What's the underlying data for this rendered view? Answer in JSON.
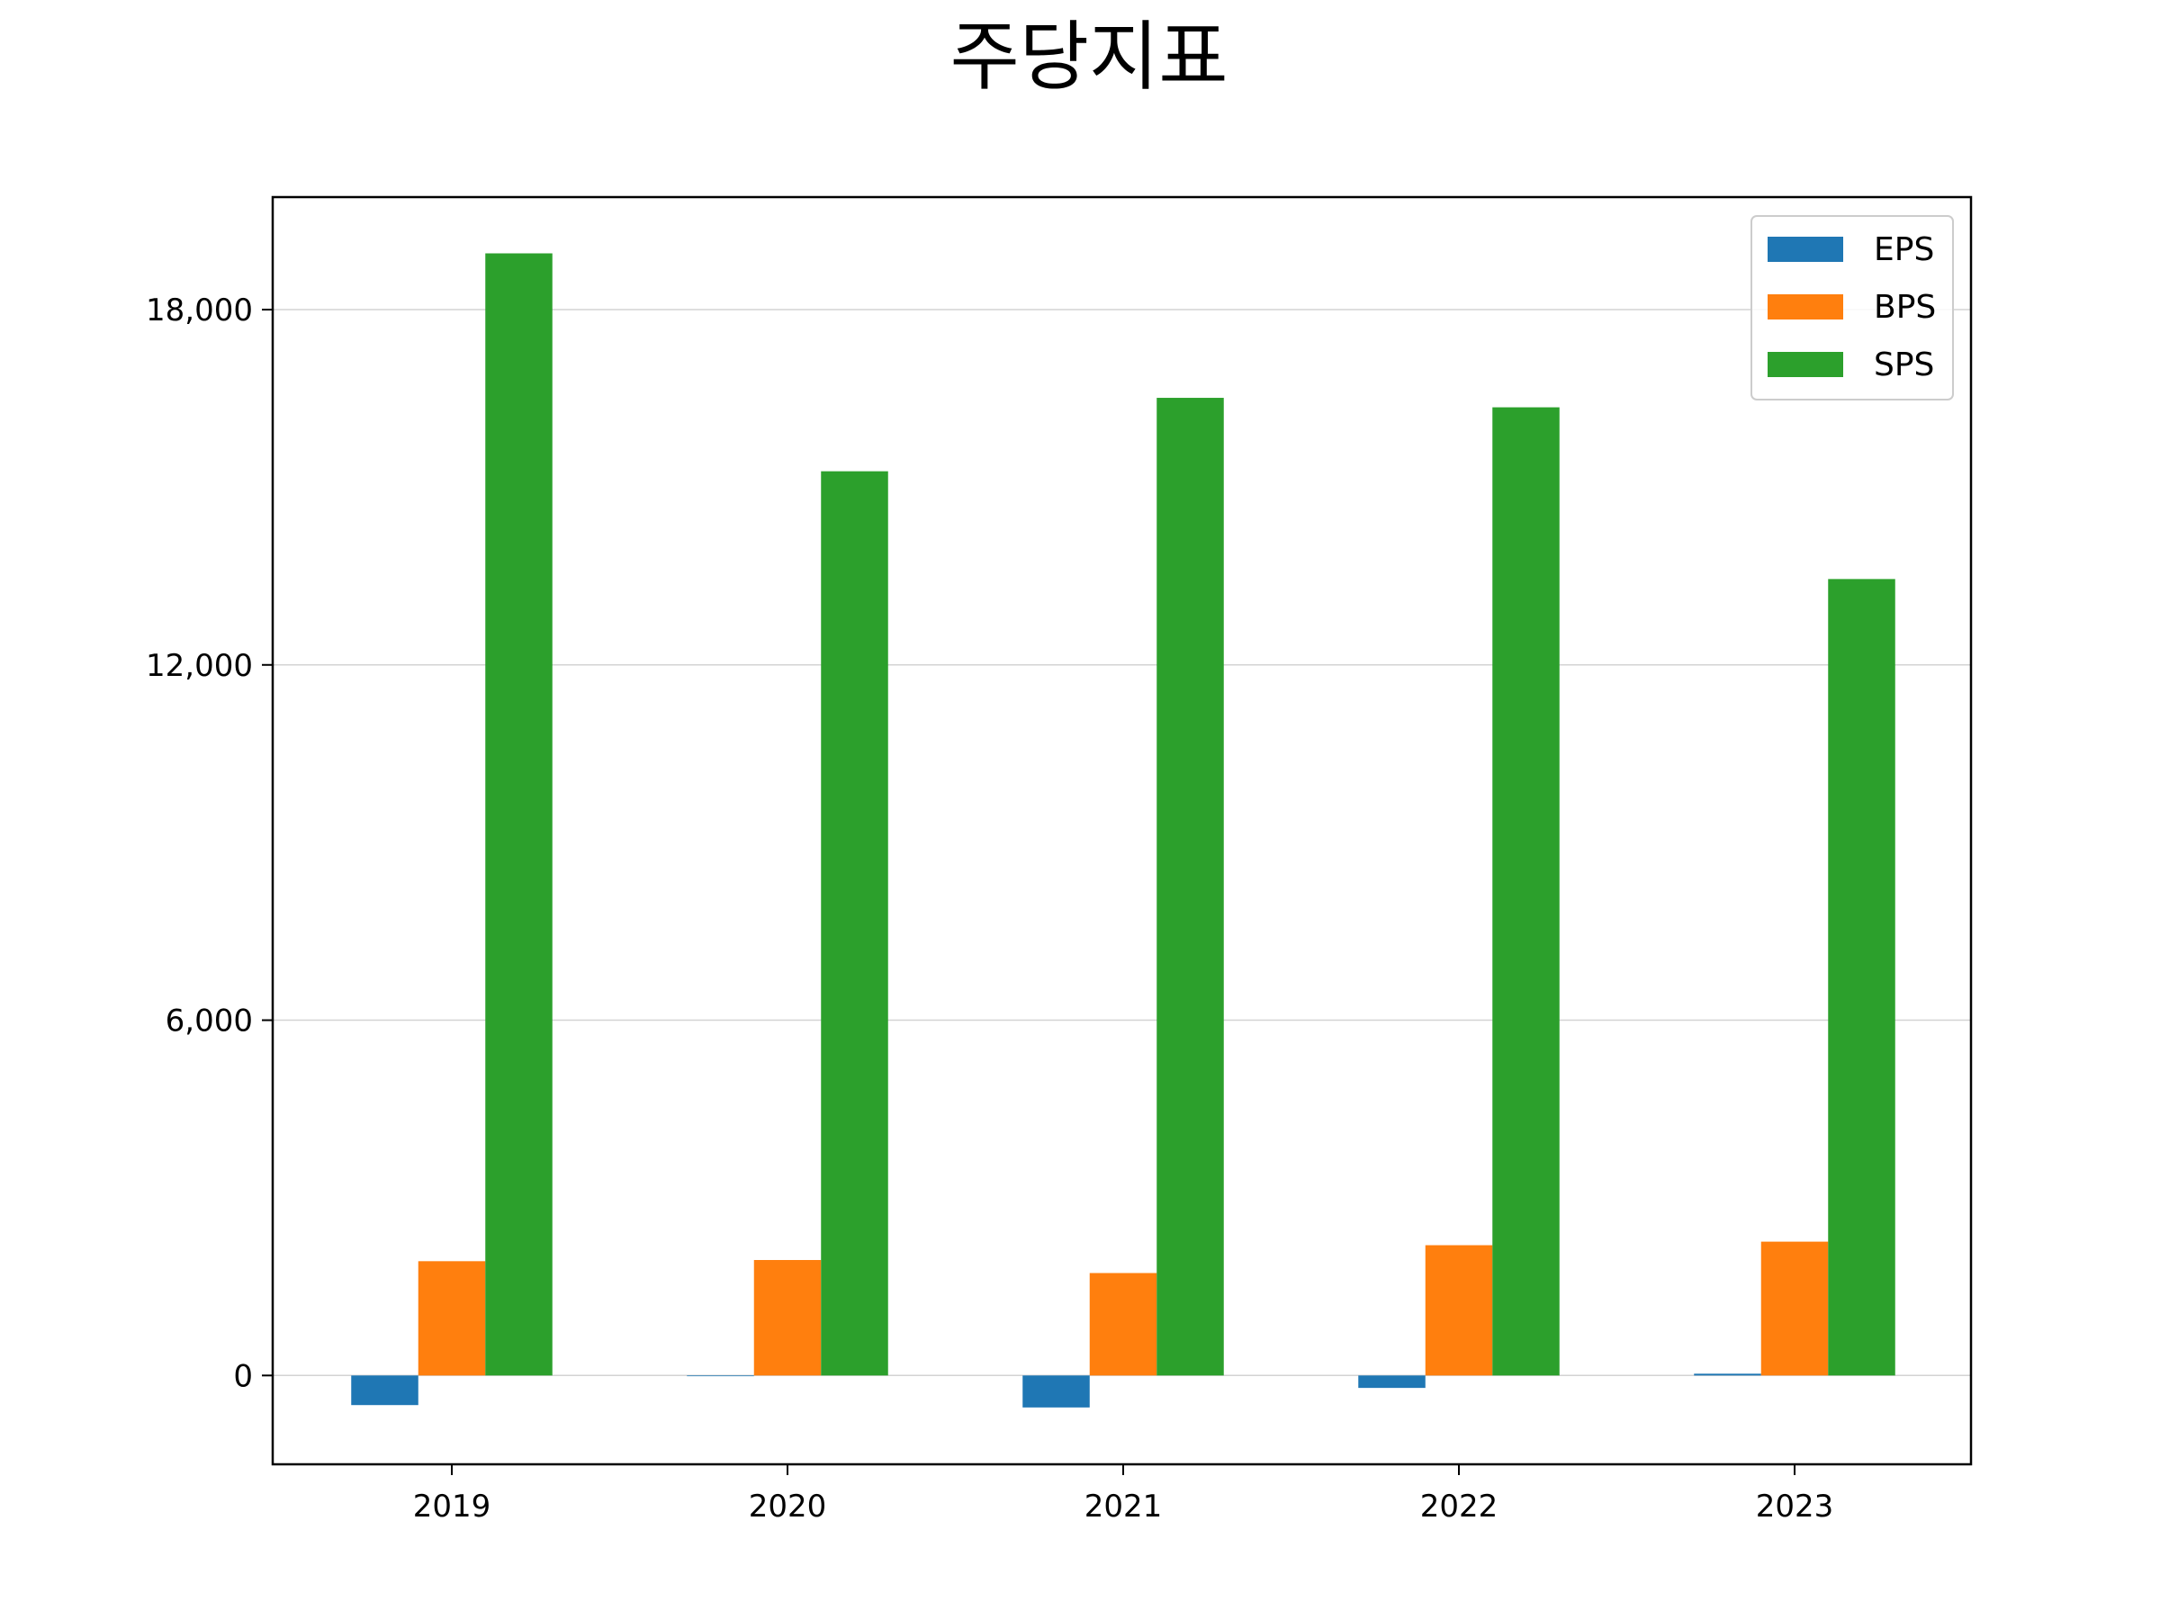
{
  "chart_data": {
    "type": "bar",
    "title": "주당지표",
    "xlabel": "",
    "ylabel": "",
    "categories": [
      "2019",
      "2020",
      "2021",
      "2022",
      "2023"
    ],
    "series": [
      {
        "name": "EPS",
        "color": "#1f77b4",
        "values": [
          -500,
          0,
          -540,
          -210,
          30
        ]
      },
      {
        "name": "BPS",
        "color": "#ff7f0e",
        "values": [
          1930,
          1950,
          1730,
          2200,
          2260
        ]
      },
      {
        "name": "SPS",
        "color": "#2ca02c",
        "values": [
          18950,
          15270,
          16510,
          16350,
          13450
        ]
      }
    ],
    "ylim": [
      -1500,
      19900
    ],
    "yticks": [
      0,
      6000,
      12000,
      18000
    ],
    "ytick_labels": [
      "0",
      "6,000",
      "12,000",
      "18,000"
    ],
    "grid": "y",
    "legend": "top-right"
  }
}
